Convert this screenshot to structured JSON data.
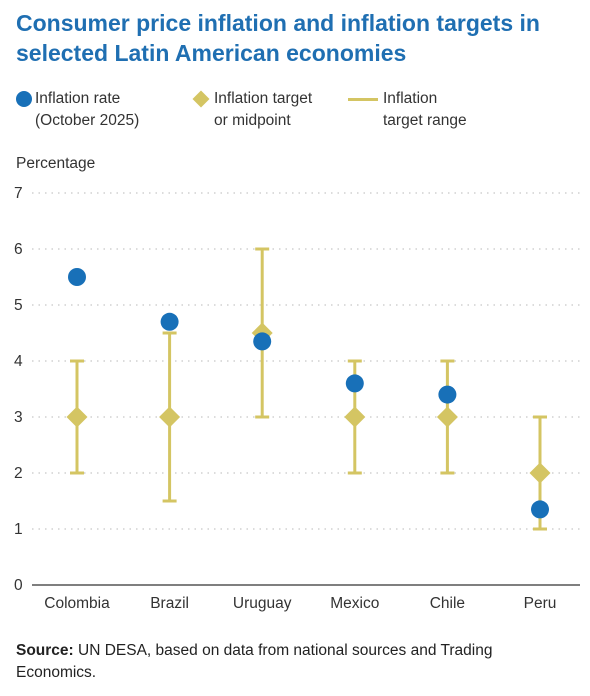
{
  "title": "Consumer price inflation and inflation targets in selected Latin American economies",
  "legend": {
    "rate_line1": "Inflation rate",
    "rate_line2": "(October 2025)",
    "target_line1": "Inflation target",
    "target_line2": "or midpoint",
    "range_line1": "Inflation",
    "range_line2": "target range"
  },
  "colors": {
    "title": "#1f6fb2",
    "inflation_rate": "#1870b8",
    "target": "#d4c563",
    "axis": "#555555",
    "grid": "#b8b8b8"
  },
  "chart_data": {
    "type": "scatter",
    "title": "Consumer price inflation and inflation targets in selected Latin American economies",
    "ylabel": "Percentage",
    "xlabel": "",
    "ylim": [
      0,
      7
    ],
    "yticks": [
      0,
      1,
      2,
      3,
      4,
      5,
      6,
      7
    ],
    "grid": "horizontal dotted",
    "legend_position": "top",
    "categories": [
      "Colombia",
      "Brazil",
      "Uruguay",
      "Mexico",
      "Chile",
      "Peru"
    ],
    "series": [
      {
        "name": "Inflation rate (October 2025)",
        "marker": "circle",
        "values": [
          5.5,
          4.7,
          4.35,
          3.6,
          3.4,
          1.35
        ]
      },
      {
        "name": "Inflation target or midpoint",
        "marker": "diamond",
        "values": [
          3,
          3,
          4.5,
          3,
          3,
          2
        ]
      },
      {
        "name": "Inflation target range",
        "marker": "range",
        "low": [
          2,
          1.5,
          3,
          2,
          2,
          1
        ],
        "high": [
          4,
          4.5,
          6,
          4,
          4,
          3
        ]
      }
    ]
  },
  "source": {
    "label": "Source:",
    "text": "UN DESA, based on data from national sources and Trading Economics."
  }
}
